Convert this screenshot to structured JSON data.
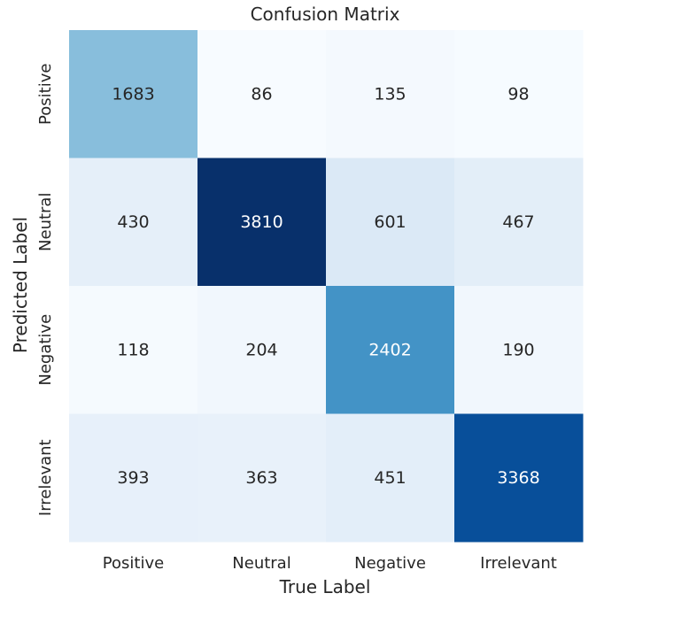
{
  "chart_data": {
    "type": "heatmap",
    "title": "Confusion Matrix",
    "xlabel": "True Label",
    "ylabel": "Predicted Label",
    "x_categories": [
      "Positive",
      "Neutral",
      "Negative",
      "Irrelevant"
    ],
    "y_categories": [
      "Positive",
      "Neutral",
      "Negative",
      "Irrelevant"
    ],
    "matrix": [
      [
        1683,
        86,
        135,
        98
      ],
      [
        430,
        3810,
        601,
        467
      ],
      [
        118,
        204,
        2402,
        190
      ],
      [
        393,
        363,
        451,
        3368
      ]
    ],
    "colormap": "Blues",
    "colorbar": false,
    "grid": false
  }
}
